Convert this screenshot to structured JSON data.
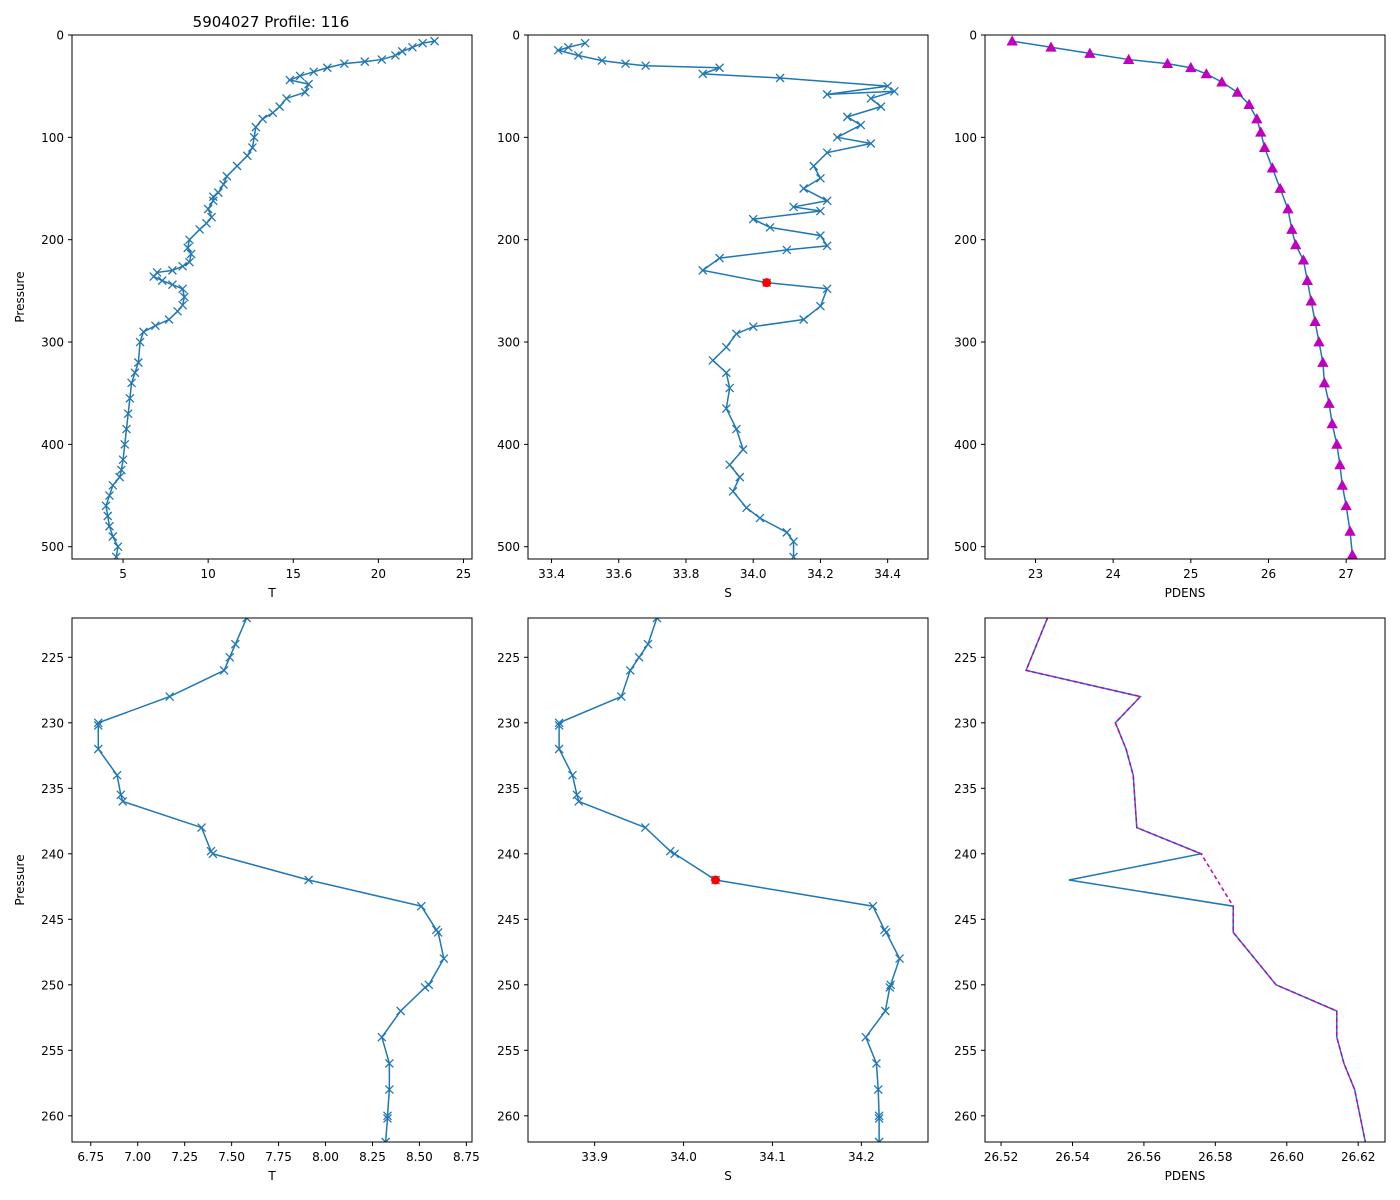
{
  "figure_title": "5904027 Profile: 116",
  "colors": {
    "line": "#1f77b4",
    "highlight": "#ff0000",
    "density": "#bf00bf",
    "axis": "#000000"
  },
  "chart_data": [
    {
      "type": "line",
      "panel": "top-left",
      "xlabel": "T",
      "ylabel": "Pressure",
      "xlim": [
        2.0,
        25.5
      ],
      "ylim": [
        0,
        512
      ],
      "y_inverted": true,
      "xticks": [
        5,
        10,
        15,
        20,
        25
      ],
      "yticks": [
        0,
        100,
        200,
        300,
        400,
        500
      ],
      "marker": "x",
      "series": [
        {
          "name": "T",
          "x": [
            23.3,
            22.6,
            22.0,
            21.4,
            21.0,
            20.2,
            19.2,
            18.0,
            17.0,
            16.2,
            15.4,
            14.8,
            15.9,
            15.7,
            14.6,
            14.2,
            13.8,
            13.2,
            12.8,
            12.7,
            12.6,
            12.3,
            11.7,
            11.1,
            10.9,
            10.6,
            10.3,
            10.3,
            10.0,
            10.2,
            9.9,
            9.5,
            8.9,
            8.8,
            9.0,
            8.9,
            8.5,
            7.9,
            7.0,
            6.8,
            7.3,
            7.9,
            8.5,
            8.6,
            8.5,
            8.2,
            7.7,
            6.9,
            6.2,
            6.0,
            5.9,
            5.7,
            5.5,
            5.4,
            5.3,
            5.2,
            5.1,
            5.0,
            4.9,
            4.8,
            4.4,
            4.2,
            4.0,
            4.1,
            4.2,
            4.4,
            4.7,
            4.6
          ],
          "y": [
            6,
            8,
            12,
            16,
            20,
            24,
            26,
            28,
            32,
            36,
            40,
            44,
            48,
            56,
            62,
            70,
            76,
            82,
            90,
            100,
            110,
            118,
            128,
            138,
            146,
            154,
            158,
            162,
            170,
            178,
            184,
            190,
            200,
            208,
            214,
            222,
            226,
            230,
            232,
            236,
            240,
            244,
            248,
            256,
            264,
            270,
            278,
            284,
            290,
            300,
            320,
            330,
            340,
            355,
            370,
            385,
            400,
            415,
            425,
            432,
            440,
            450,
            460,
            470,
            480,
            490,
            500,
            510
          ]
        }
      ],
      "markers": []
    },
    {
      "type": "line",
      "panel": "top-middle",
      "xlabel": "S",
      "ylabel": "",
      "xlim": [
        33.33,
        34.52
      ],
      "ylim": [
        0,
        512
      ],
      "y_inverted": true,
      "xticks": [
        33.4,
        33.6,
        33.8,
        34.0,
        34.2,
        34.4
      ],
      "xtick_labels": [
        "33.4",
        "33.6",
        "33.8",
        "34.0",
        "34.2",
        "34.4"
      ],
      "yticks": [
        0,
        100,
        200,
        300,
        400,
        500
      ],
      "marker": "x",
      "series": [
        {
          "name": "S",
          "x": [
            33.5,
            33.45,
            33.42,
            33.48,
            33.55,
            33.62,
            33.68,
            33.9,
            33.85,
            34.08,
            34.4,
            34.22,
            34.42,
            34.35,
            34.38,
            34.28,
            34.32,
            34.25,
            34.35,
            34.22,
            34.18,
            34.2,
            34.15,
            34.22,
            34.12,
            34.2,
            34.0,
            34.05,
            34.2,
            34.22,
            34.1,
            33.9,
            33.85,
            34.04,
            34.22,
            34.2,
            34.15,
            34.0,
            33.95,
            33.92,
            33.88,
            33.92,
            33.93,
            33.92,
            33.95,
            33.97,
            33.93,
            33.96,
            33.94,
            33.98,
            34.02,
            34.1,
            34.12,
            34.12
          ],
          "y": [
            8,
            12,
            15,
            20,
            25,
            28,
            30,
            32,
            38,
            42,
            50,
            58,
            55,
            62,
            70,
            80,
            88,
            100,
            106,
            115,
            128,
            140,
            150,
            162,
            168,
            172,
            180,
            188,
            196,
            206,
            210,
            218,
            230,
            242,
            248,
            265,
            278,
            285,
            292,
            305,
            318,
            330,
            345,
            365,
            385,
            405,
            420,
            432,
            446,
            462,
            472,
            486,
            495,
            510
          ]
        }
      ],
      "markers": [
        {
          "label": "highlight",
          "x": 34.04,
          "y": 242
        }
      ]
    },
    {
      "type": "line",
      "panel": "top-right",
      "xlabel": "PDENS",
      "ylabel": "",
      "xlim": [
        22.35,
        27.5
      ],
      "ylim": [
        0,
        512
      ],
      "y_inverted": true,
      "xticks": [
        23,
        24,
        25,
        26,
        27
      ],
      "yticks": [
        0,
        100,
        200,
        300,
        400,
        500
      ],
      "marker": "triangle",
      "series": [
        {
          "name": "PDENS",
          "x": [
            22.7,
            23.2,
            23.7,
            24.2,
            24.7,
            25.0,
            25.2,
            25.4,
            25.6,
            25.75,
            25.85,
            25.9,
            25.95,
            26.05,
            26.15,
            26.25,
            26.3,
            26.35,
            26.45,
            26.5,
            26.55,
            26.6,
            26.65,
            26.7,
            26.72,
            26.78,
            26.82,
            26.88,
            26.92,
            26.95,
            27.0,
            27.05,
            27.08
          ],
          "y": [
            6,
            12,
            18,
            24,
            28,
            32,
            38,
            46,
            56,
            68,
            82,
            95,
            110,
            130,
            150,
            170,
            190,
            205,
            220,
            240,
            260,
            280,
            300,
            320,
            340,
            360,
            380,
            400,
            420,
            440,
            460,
            485,
            508
          ]
        }
      ],
      "markers": []
    },
    {
      "type": "line",
      "panel": "bottom-left",
      "xlabel": "T",
      "ylabel": "Pressure",
      "xlim": [
        6.65,
        8.78
      ],
      "ylim": [
        222,
        262
      ],
      "y_inverted": true,
      "xticks": [
        6.75,
        7.0,
        7.25,
        7.5,
        7.75,
        8.0,
        8.25,
        8.5,
        8.75
      ],
      "xtick_labels": [
        "6.75",
        "7.00",
        "7.25",
        "7.50",
        "7.75",
        "8.00",
        "8.25",
        "8.50",
        "8.75"
      ],
      "yticks": [
        225,
        230,
        235,
        240,
        245,
        250,
        255,
        260
      ],
      "marker": "x",
      "series": [
        {
          "name": "T",
          "x": [
            7.58,
            7.52,
            7.49,
            7.46,
            7.17,
            6.79,
            6.79,
            6.79,
            6.89,
            6.91,
            6.92,
            7.34,
            7.39,
            7.4,
            7.91,
            8.51,
            8.59,
            8.6,
            8.63,
            8.55,
            8.53,
            8.4,
            8.3,
            8.34,
            8.34,
            8.33,
            8.33,
            8.32
          ],
          "y": [
            222,
            224,
            225,
            226,
            228,
            230,
            230.2,
            232,
            234,
            235.5,
            236,
            238,
            239.8,
            240,
            242,
            244,
            245.8,
            246,
            248,
            250,
            250.2,
            252,
            254,
            256,
            258,
            260,
            260.2,
            262
          ]
        }
      ],
      "markers": []
    },
    {
      "type": "line",
      "panel": "bottom-middle",
      "xlabel": "S",
      "ylabel": "",
      "xlim": [
        33.825,
        34.275
      ],
      "ylim": [
        222,
        262
      ],
      "y_inverted": true,
      "xticks": [
        33.9,
        34.0,
        34.1,
        34.2
      ],
      "xtick_labels": [
        "33.9",
        "34.0",
        "34.1",
        "34.2"
      ],
      "yticks": [
        225,
        230,
        235,
        240,
        245,
        250,
        255,
        260
      ],
      "marker": "x",
      "series": [
        {
          "name": "S",
          "x": [
            33.97,
            33.96,
            33.95,
            33.94,
            33.93,
            33.86,
            33.86,
            33.86,
            33.875,
            33.88,
            33.882,
            33.957,
            33.985,
            33.99,
            34.036,
            34.213,
            34.226,
            34.228,
            34.243,
            34.233,
            34.232,
            34.227,
            34.205,
            34.217,
            34.219,
            34.22,
            34.22,
            34.22
          ],
          "y": [
            222,
            224,
            225,
            226,
            228,
            230,
            230.2,
            232,
            234,
            235.5,
            236,
            238,
            239.8,
            240,
            242,
            244,
            245.8,
            246,
            248,
            250,
            250.2,
            252,
            254,
            256,
            258,
            260,
            260.2,
            262
          ]
        }
      ],
      "markers": [
        {
          "label": "highlight",
          "x": 34.036,
          "y": 242
        }
      ]
    },
    {
      "type": "line",
      "panel": "bottom-right",
      "xlabel": "PDENS",
      "ylabel": "",
      "xlim": [
        26.5155,
        26.6275
      ],
      "ylim": [
        222,
        262
      ],
      "y_inverted": true,
      "xticks": [
        26.52,
        26.54,
        26.56,
        26.58,
        26.6,
        26.62
      ],
      "xtick_labels": [
        "26.52",
        "26.54",
        "26.56",
        "26.58",
        "26.60",
        "26.62"
      ],
      "yticks": [
        225,
        230,
        235,
        240,
        245,
        250,
        255,
        260
      ],
      "marker": "none",
      "series": [
        {
          "name": "PDENS",
          "x": [
            26.533,
            26.527,
            26.559,
            26.552,
            26.555,
            26.557,
            26.558,
            26.576,
            26.539,
            26.585,
            26.585,
            26.597,
            26.614,
            26.614,
            26.616,
            26.619,
            26.622
          ],
          "y": [
            222,
            226,
            228,
            230,
            232,
            234,
            238,
            240,
            242,
            244,
            246,
            250,
            252,
            254,
            256,
            258,
            262
          ]
        },
        {
          "name": "PDENS (interpolated)",
          "dashed": true,
          "x": [
            26.533,
            26.527,
            26.559,
            26.552,
            26.555,
            26.557,
            26.558,
            26.576,
            26.585,
            26.585,
            26.597,
            26.614,
            26.614,
            26.616,
            26.619,
            26.622
          ],
          "y": [
            222,
            226,
            228,
            230,
            232,
            234,
            238,
            240,
            244,
            246,
            250,
            252,
            254,
            256,
            258,
            262
          ]
        }
      ],
      "markers": []
    }
  ]
}
